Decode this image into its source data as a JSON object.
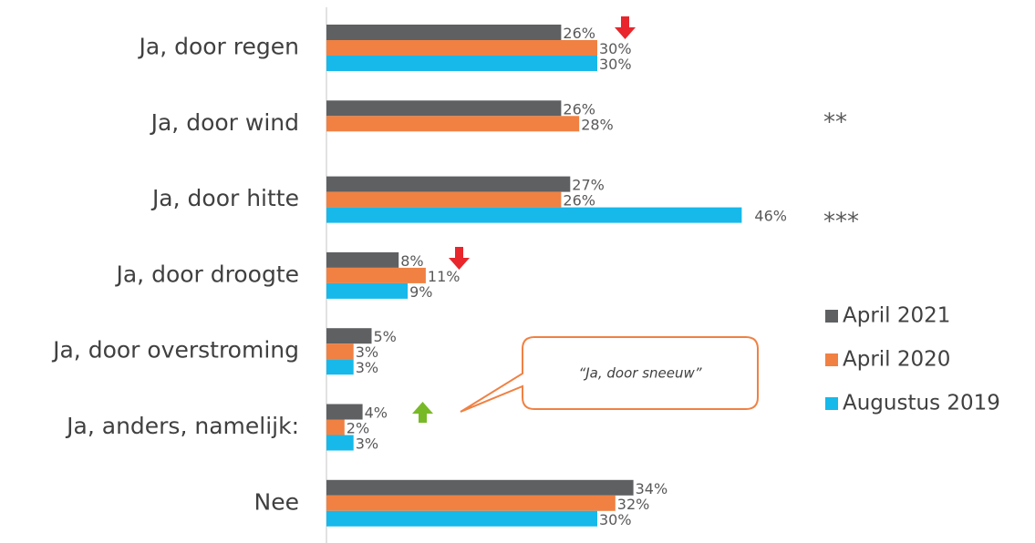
{
  "chart_data": {
    "type": "hbar",
    "categories": [
      "Ja, door regen",
      "Ja, door wind",
      "Ja, door hitte",
      "Ja, door droogte",
      "Ja, door overstroming",
      "Ja, anders, namelijk:",
      "Nee"
    ],
    "xlim": [
      0,
      50
    ],
    "series": [
      {
        "name": "April 2021",
        "color": "#5f6062",
        "values": [
          26,
          26,
          27,
          8,
          5,
          4,
          34
        ],
        "value_labels": [
          "26%",
          "26%",
          "27%",
          "8%",
          "5%",
          "4%",
          "34%"
        ]
      },
      {
        "name": "April 2020",
        "color": "#f08143",
        "values": [
          30,
          28,
          26,
          11,
          3,
          2,
          32
        ],
        "value_labels": [
          "30%",
          "28%",
          "26%",
          "11%",
          "3%",
          "2%",
          "32%"
        ]
      },
      {
        "name": "Augustus 2019",
        "color": "#16b9ea",
        "values": [
          30,
          null,
          46,
          9,
          3,
          3,
          30
        ],
        "value_labels": [
          "30%",
          null,
          "46%",
          "9%",
          "3%",
          "3%",
          "30%"
        ]
      }
    ],
    "annotations": [
      "**",
      "***",
      "“Ja, door sneeuw”"
    ],
    "legend": "right"
  }
}
